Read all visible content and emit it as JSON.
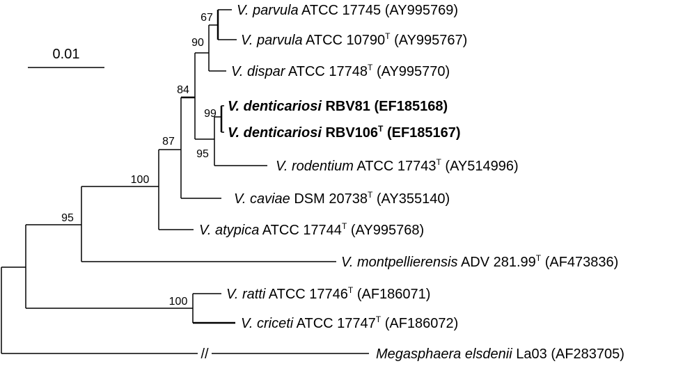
{
  "scale_bar": {
    "label": "0.01"
  },
  "leaves": [
    {
      "id": "parvula_17745",
      "species": "V. parvula",
      "strain": "ATCC 17745",
      "type_strain": "",
      "accession": "(AY995769)",
      "bold": false
    },
    {
      "id": "parvula_10790",
      "species": "V. parvula",
      "strain": "ATCC 10790",
      "type_strain": "T",
      "accession": "(AY995767)",
      "bold": false
    },
    {
      "id": "dispar",
      "species": "V. dispar",
      "strain": "ATCC 17748",
      "type_strain": "T",
      "accession": "(AY995770)",
      "bold": false
    },
    {
      "id": "dent_rbv81",
      "species": "V. denticariosi",
      "strain": "RBV81",
      "type_strain": "",
      "accession": "(EF185168)",
      "bold": true
    },
    {
      "id": "dent_rbv106",
      "species": "V. denticariosi",
      "strain": "RBV106",
      "type_strain": "T",
      "accession": "(EF185167)",
      "bold": true
    },
    {
      "id": "rodentium",
      "species": "V. rodentium",
      "strain": "ATCC 17743",
      "type_strain": "T",
      "accession": "(AY514996)",
      "bold": false
    },
    {
      "id": "caviae",
      "species": "V. caviae",
      "strain": "DSM 20738",
      "type_strain": "T",
      "accession": "(AY355140)",
      "bold": false
    },
    {
      "id": "atypica",
      "species": "V. atypica",
      "strain": "ATCC 17744",
      "type_strain": "T",
      "accession": "(AY995768)",
      "bold": false
    },
    {
      "id": "montpellierensis",
      "species": "V. montpellierensis",
      "strain": "ADV 281.99",
      "type_strain": "T",
      "accession": "(AF473836)",
      "bold": false
    },
    {
      "id": "ratti",
      "species": "V. ratti",
      "strain": "ATCC 17746",
      "type_strain": "T",
      "accession": "(AF186071)",
      "bold": false
    },
    {
      "id": "criceti",
      "species": "V. criceti",
      "strain": "ATCC 17747",
      "type_strain": "T",
      "accession": "(AF186072)",
      "bold": false
    },
    {
      "id": "megasphaera",
      "species": "Megasphaera elsdenii",
      "strain": "La03",
      "type_strain": "",
      "accession": "(AF283705)",
      "bold": false
    }
  ],
  "bootstrap": {
    "parvula_pair": "67",
    "parvula_dispar": "90",
    "denticariosi_pair": "99",
    "denticariosi_rodentium": "95",
    "upper_clade": "84",
    "with_caviae": "87",
    "with_atypica": "100",
    "with_montpellierensis": "95",
    "ratti_criceti": "100"
  },
  "break_mark": "//"
}
